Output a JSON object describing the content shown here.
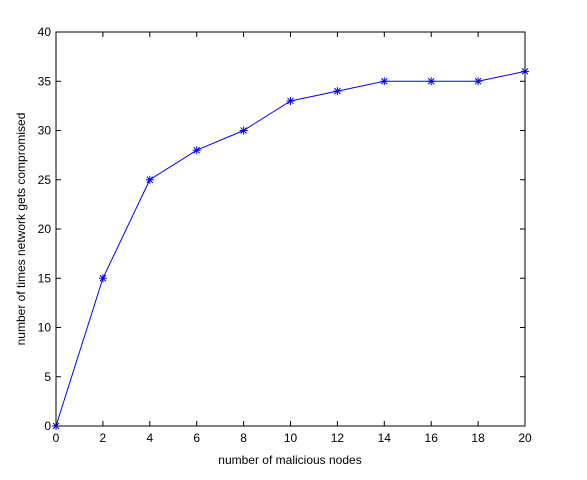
{
  "chart_data": {
    "type": "line",
    "title": "",
    "xlabel": "number of malicious nodes",
    "ylabel": "number of times network gets compromised",
    "xlim": [
      0,
      20
    ],
    "ylim": [
      0,
      40
    ],
    "xticks": [
      0,
      2,
      4,
      6,
      8,
      10,
      12,
      14,
      16,
      18,
      20
    ],
    "yticks": [
      0,
      5,
      10,
      15,
      20,
      25,
      30,
      35,
      40
    ],
    "grid": false,
    "series": [
      {
        "color": "#0000ff",
        "marker": "asterisk",
        "x": [
          0,
          2,
          4,
          6,
          8,
          10,
          12,
          14,
          16,
          18,
          20
        ],
        "y": [
          0,
          15,
          25,
          28,
          30,
          33,
          34,
          35,
          35,
          35,
          36
        ]
      }
    ]
  }
}
